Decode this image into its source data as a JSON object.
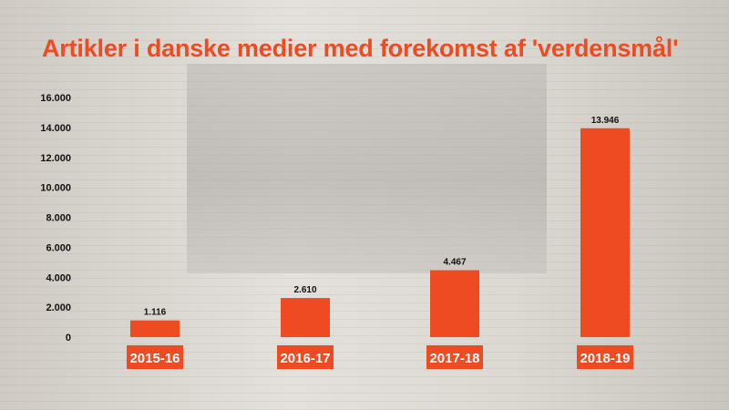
{
  "chart_data": {
    "type": "bar",
    "title": "Artikler i danske medier med forekomst af 'verdensmål'",
    "categories": [
      "2015-16",
      "2016-17",
      "2017-18",
      "2018-19"
    ],
    "values": [
      1116,
      2610,
      4467,
      13946
    ],
    "value_labels": [
      "1.116",
      "2.610",
      "4.467",
      "13.946"
    ],
    "yticks": [
      0,
      2000,
      4000,
      6000,
      8000,
      10000,
      12000,
      14000,
      16000
    ],
    "ytick_labels": [
      "0",
      "2.000",
      "4.000",
      "6.000",
      "8.000",
      "10.000",
      "12.000",
      "14.000",
      "16.000"
    ],
    "ylim": [
      0,
      16000
    ],
    "xlabel": "",
    "ylabel": "",
    "grid": false,
    "bar_color": "#ee4b23"
  }
}
